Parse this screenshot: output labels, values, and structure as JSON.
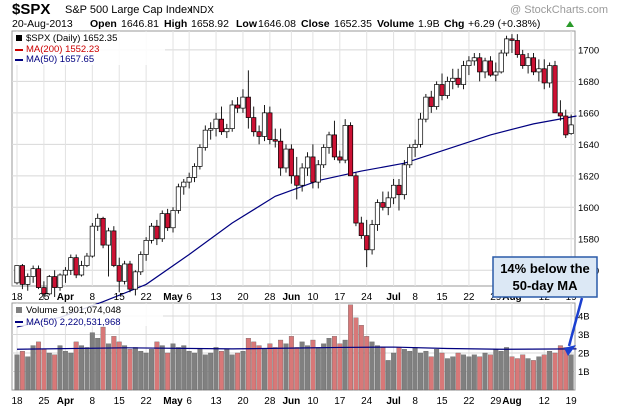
{
  "header": {
    "symbol": "$SPX",
    "name": "S&P 500 Large Cap Index",
    "exchange": "INDX",
    "watermark": "@ StockCharts.com",
    "date": "20-Aug-2013",
    "open_label": "Open",
    "open": "1646.81",
    "high_label": "High",
    "high": "1658.92",
    "low_label": "Low",
    "low": "1646.08",
    "close_label": "Close",
    "close": "1652.35",
    "volume_label": "Volume",
    "volume": "1.9B",
    "chg_label": "Chg",
    "chg": "+6.29 (+0.38%)"
  },
  "price_legend": [
    {
      "text": "$SPX (Daily) 1652.35",
      "color": "#000000"
    },
    {
      "text": "MA(200) 1552.23",
      "color": "#cc0000"
    },
    {
      "text": "MA(50) 1657.65",
      "color": "#000080"
    }
  ],
  "volume_legend": [
    {
      "text": "Volume 1,901,074,048",
      "color": "#000000"
    },
    {
      "text": "MA(50) 2,220,531,968",
      "color": "#000080"
    }
  ],
  "annotation": {
    "line1": "14% below the",
    "line2": "50-day MA"
  },
  "x_axis_labels": [
    {
      "i": 0,
      "text": "18",
      "bold": false
    },
    {
      "i": 5,
      "text": "25",
      "bold": false
    },
    {
      "i": 9,
      "text": "Apr",
      "bold": true
    },
    {
      "i": 14,
      "text": "8",
      "bold": false
    },
    {
      "i": 19,
      "text": "15",
      "bold": false
    },
    {
      "i": 24,
      "text": "22",
      "bold": false
    },
    {
      "i": 29,
      "text": "May",
      "bold": true
    },
    {
      "i": 32,
      "text": "6",
      "bold": false
    },
    {
      "i": 37,
      "text": "13",
      "bold": false
    },
    {
      "i": 42,
      "text": "20",
      "bold": false
    },
    {
      "i": 47,
      "text": "28",
      "bold": false
    },
    {
      "i": 51,
      "text": "Jun",
      "bold": true
    },
    {
      "i": 55,
      "text": "10",
      "bold": false
    },
    {
      "i": 60,
      "text": "17",
      "bold": false
    },
    {
      "i": 65,
      "text": "24",
      "bold": false
    },
    {
      "i": 70,
      "text": "Jul",
      "bold": true
    },
    {
      "i": 74,
      "text": "8",
      "bold": false
    },
    {
      "i": 79,
      "text": "15",
      "bold": false
    },
    {
      "i": 84,
      "text": "22",
      "bold": false
    },
    {
      "i": 89,
      "text": "29",
      "bold": false
    },
    {
      "i": 92,
      "text": "Aug",
      "bold": true
    },
    {
      "i": 98,
      "text": "12",
      "bold": false
    },
    {
      "i": 103,
      "text": "19",
      "bold": false
    }
  ],
  "chart_data": {
    "type": "candlestick",
    "price_axis": {
      "ticks": [
        1560,
        1580,
        1600,
        1620,
        1640,
        1660,
        1680,
        1700
      ],
      "ylim": [
        1550,
        1712
      ]
    },
    "volume_axis": {
      "ticks": [
        1,
        2,
        3,
        4
      ],
      "tick_labels": [
        "1B",
        "2B",
        "3B",
        "4B"
      ],
      "ylim": [
        0,
        4.7
      ]
    },
    "colors": {
      "up_body": "#ffffff",
      "down_body": "#cc1133",
      "up_volume": "#808080",
      "down_volume": "#d87878",
      "ma50": "#000080",
      "ma200": "#cc0000"
    },
    "ohlc": [
      [
        1552,
        1562,
        1551,
        1563
      ],
      [
        1563,
        1564,
        1548,
        1551
      ],
      [
        1551,
        1558,
        1547,
        1556
      ],
      [
        1556,
        1563,
        1552,
        1561
      ],
      [
        1561,
        1563,
        1548,
        1549
      ],
      [
        1549,
        1553,
        1542,
        1545
      ],
      [
        1545,
        1557,
        1544,
        1556
      ],
      [
        1556,
        1560,
        1543,
        1549
      ],
      [
        1549,
        1558,
        1547,
        1557
      ],
      [
        1557,
        1562,
        1552,
        1560
      ],
      [
        1560,
        1570,
        1557,
        1568
      ],
      [
        1568,
        1570,
        1555,
        1557
      ],
      [
        1557,
        1566,
        1556,
        1563
      ],
      [
        1563,
        1571,
        1562,
        1569
      ],
      [
        1569,
        1590,
        1568,
        1588
      ],
      [
        1588,
        1596,
        1585,
        1593
      ],
      [
        1593,
        1594,
        1574,
        1576
      ],
      [
        1576,
        1587,
        1556,
        1585
      ],
      [
        1585,
        1588,
        1562,
        1563
      ],
      [
        1563,
        1568,
        1546,
        1553
      ],
      [
        1553,
        1566,
        1551,
        1564
      ],
      [
        1564,
        1566,
        1546,
        1548
      ],
      [
        1548,
        1560,
        1544,
        1559
      ],
      [
        1559,
        1572,
        1557,
        1570
      ],
      [
        1570,
        1581,
        1566,
        1579
      ],
      [
        1579,
        1590,
        1577,
        1588
      ],
      [
        1588,
        1592,
        1576,
        1580
      ],
      [
        1580,
        1598,
        1578,
        1596
      ],
      [
        1596,
        1599,
        1585,
        1587
      ],
      [
        1587,
        1600,
        1584,
        1598
      ],
      [
        1598,
        1615,
        1596,
        1613
      ],
      [
        1613,
        1618,
        1608,
        1616
      ],
      [
        1616,
        1622,
        1612,
        1619
      ],
      [
        1619,
        1628,
        1616,
        1626
      ],
      [
        1626,
        1640,
        1624,
        1638
      ],
      [
        1638,
        1652,
        1636,
        1649
      ],
      [
        1649,
        1654,
        1643,
        1650
      ],
      [
        1650,
        1660,
        1645,
        1656
      ],
      [
        1656,
        1664,
        1646,
        1648
      ],
      [
        1648,
        1653,
        1644,
        1650
      ],
      [
        1650,
        1668,
        1648,
        1665
      ],
      [
        1665,
        1670,
        1660,
        1663
      ],
      [
        1663,
        1675,
        1660,
        1670
      ],
      [
        1670,
        1687,
        1650,
        1657
      ],
      [
        1657,
        1664,
        1645,
        1648
      ],
      [
        1648,
        1652,
        1640,
        1645
      ],
      [
        1645,
        1665,
        1642,
        1660
      ],
      [
        1660,
        1664,
        1640,
        1643
      ],
      [
        1643,
        1650,
        1638,
        1642
      ],
      [
        1642,
        1650,
        1620,
        1625
      ],
      [
        1625,
        1640,
        1622,
        1637
      ],
      [
        1637,
        1640,
        1615,
        1620
      ],
      [
        1620,
        1632,
        1605,
        1614
      ],
      [
        1614,
        1628,
        1610,
        1625
      ],
      [
        1625,
        1635,
        1620,
        1632
      ],
      [
        1632,
        1640,
        1612,
        1616
      ],
      [
        1616,
        1630,
        1612,
        1627
      ],
      [
        1627,
        1640,
        1625,
        1638
      ],
      [
        1638,
        1648,
        1634,
        1646
      ],
      [
        1646,
        1655,
        1630,
        1632
      ],
      [
        1632,
        1636,
        1628,
        1630
      ],
      [
        1630,
        1656,
        1628,
        1652
      ],
      [
        1652,
        1654,
        1620,
        1620
      ],
      [
        1620,
        1622,
        1588,
        1590
      ],
      [
        1590,
        1594,
        1580,
        1582
      ],
      [
        1582,
        1592,
        1562,
        1573
      ],
      [
        1573,
        1592,
        1570,
        1589
      ],
      [
        1589,
        1605,
        1585,
        1603
      ],
      [
        1603,
        1610,
        1598,
        1600
      ],
      [
        1600,
        1610,
        1595,
        1606
      ],
      [
        1606,
        1618,
        1602,
        1614
      ],
      [
        1614,
        1618,
        1598,
        1608
      ],
      [
        1608,
        1630,
        1605,
        1627
      ],
      [
        1627,
        1640,
        1625,
        1638
      ],
      [
        1638,
        1643,
        1632,
        1640
      ],
      [
        1640,
        1660,
        1638,
        1656
      ],
      [
        1656,
        1672,
        1654,
        1670
      ],
      [
        1670,
        1674,
        1660,
        1664
      ],
      [
        1664,
        1680,
        1662,
        1678
      ],
      [
        1678,
        1685,
        1668,
        1671
      ],
      [
        1671,
        1683,
        1669,
        1680
      ],
      [
        1680,
        1688,
        1675,
        1682
      ],
      [
        1682,
        1688,
        1676,
        1678
      ],
      [
        1678,
        1693,
        1675,
        1690
      ],
      [
        1690,
        1696,
        1684,
        1693
      ],
      [
        1693,
        1698,
        1690,
        1695
      ],
      [
        1695,
        1698,
        1680,
        1686
      ],
      [
        1686,
        1695,
        1682,
        1693
      ],
      [
        1693,
        1696,
        1683,
        1684
      ],
      [
        1684,
        1692,
        1680,
        1686
      ],
      [
        1686,
        1700,
        1685,
        1698
      ],
      [
        1698,
        1709,
        1696,
        1707
      ],
      [
        1707,
        1710,
        1698,
        1706
      ],
      [
        1706,
        1710,
        1695,
        1697
      ],
      [
        1697,
        1700,
        1688,
        1690
      ],
      [
        1690,
        1698,
        1685,
        1695
      ],
      [
        1695,
        1698,
        1684,
        1686
      ],
      [
        1686,
        1694,
        1680,
        1688
      ],
      [
        1688,
        1694,
        1675,
        1679
      ],
      [
        1679,
        1692,
        1676,
        1690
      ],
      [
        1690,
        1693,
        1660,
        1660
      ],
      [
        1660,
        1668,
        1655,
        1658
      ],
      [
        1658,
        1662,
        1644,
        1646
      ],
      [
        1646.81,
        1658.92,
        1646.08,
        1652.35
      ]
    ],
    "volume": [
      1.9,
      2.1,
      1.8,
      2.4,
      2.6,
      2.2,
      2.0,
      1.9,
      2.4,
      2.1,
      2.0,
      2.6,
      2.4,
      2.3,
      3.1,
      2.8,
      3.4,
      2.5,
      2.9,
      2.6,
      2.4,
      2.2,
      2.3,
      2.1,
      2.0,
      2.2,
      2.6,
      2.4,
      2.0,
      2.5,
      2.3,
      2.4,
      2.1,
      2.0,
      2.2,
      1.9,
      2.0,
      2.3,
      2.1,
      2.2,
      1.9,
      2.0,
      2.1,
      2.8,
      2.6,
      2.4,
      2.2,
      2.5,
      2.3,
      2.7,
      2.5,
      2.9,
      2.3,
      2.6,
      2.4,
      2.7,
      2.3,
      2.5,
      2.8,
      2.9,
      2.5,
      2.7,
      4.6,
      3.9,
      3.5,
      2.9,
      2.6,
      2.4,
      2.3,
      1.6,
      2.0,
      2.3,
      2.2,
      2.1,
      2.3,
      2.0,
      2.1,
      1.8,
      2.2,
      2.0,
      1.7,
      1.8,
      2.0,
      1.9,
      1.8,
      1.9,
      1.8,
      2.0,
      1.9,
      2.2,
      2.1,
      2.3,
      1.8,
      1.7,
      1.9,
      1.7,
      1.6,
      1.8,
      1.9,
      2.1,
      2.0,
      2.4,
      2.3,
      1.9
    ],
    "ma50": [
      [
        0,
        1524
      ],
      [
        8,
        1530
      ],
      [
        16,
        1540
      ],
      [
        24,
        1551
      ],
      [
        32,
        1570
      ],
      [
        40,
        1590
      ],
      [
        48,
        1607
      ],
      [
        56,
        1617
      ],
      [
        64,
        1623
      ],
      [
        72,
        1628
      ],
      [
        80,
        1637
      ],
      [
        88,
        1646
      ],
      [
        96,
        1653
      ],
      [
        104,
        1658
      ]
    ],
    "volume_ma50": [
      [
        0,
        2.2
      ],
      [
        20,
        2.28
      ],
      [
        40,
        2.22
      ],
      [
        60,
        2.3
      ],
      [
        70,
        2.32
      ],
      [
        80,
        2.24
      ],
      [
        90,
        2.2
      ],
      [
        104,
        2.22
      ]
    ]
  }
}
